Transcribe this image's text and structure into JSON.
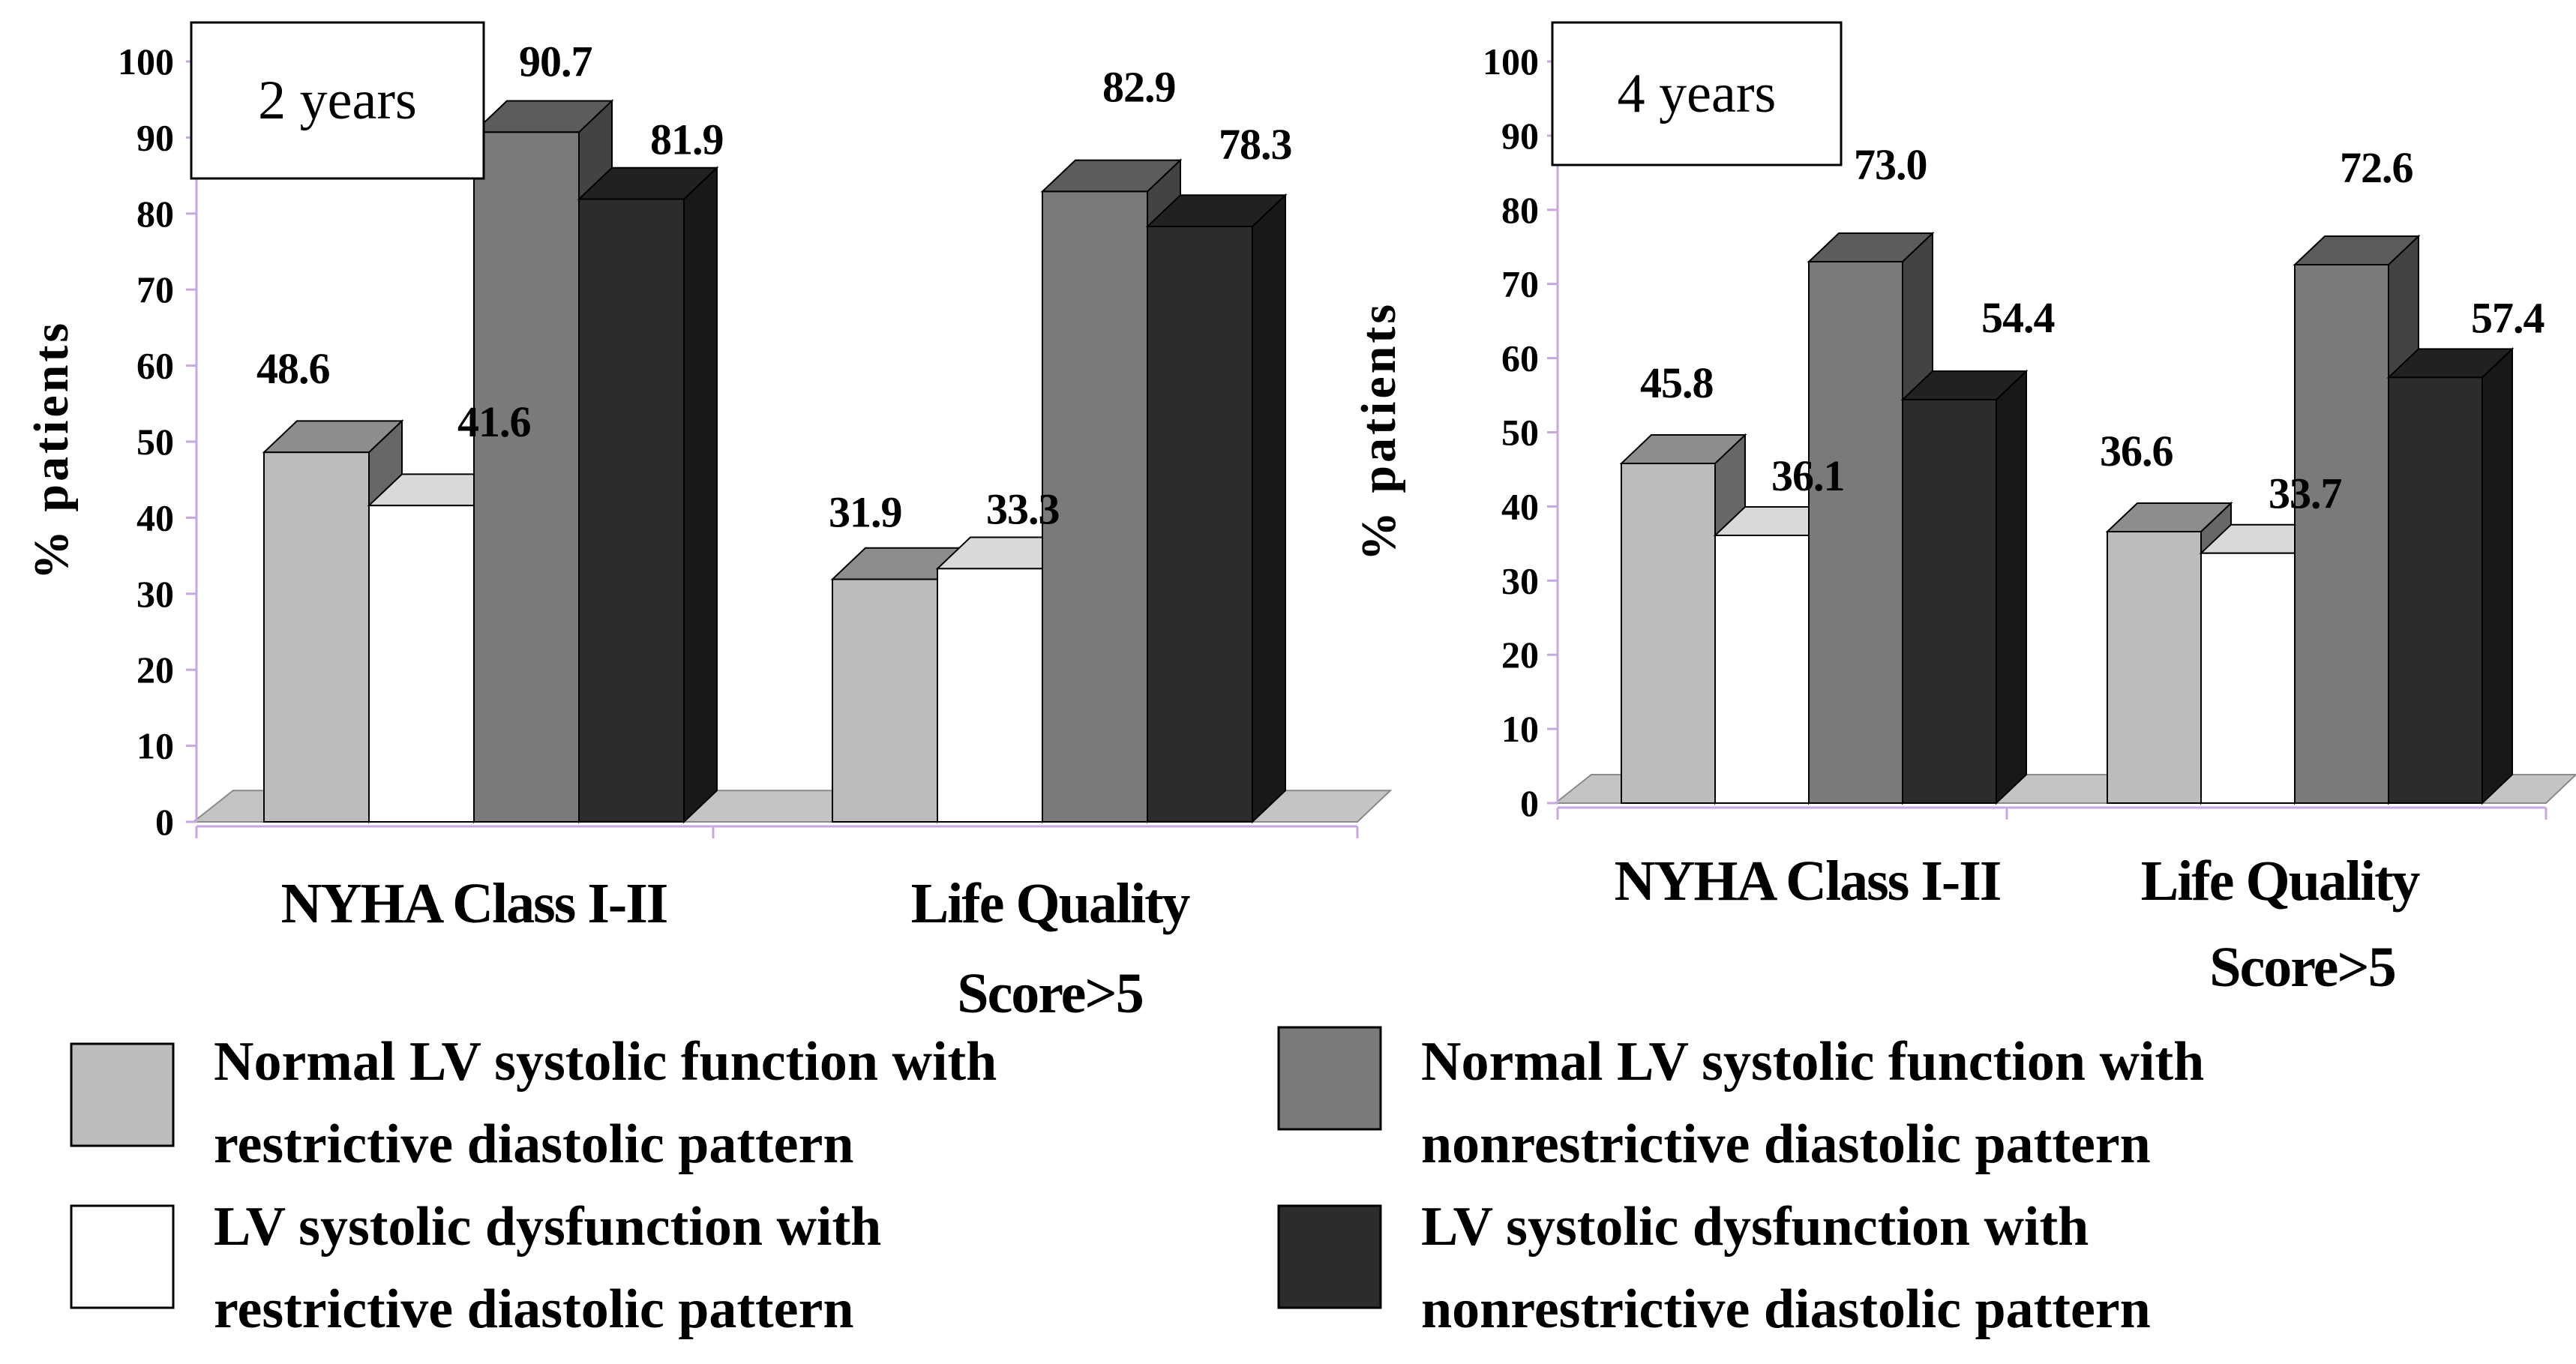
{
  "colors": {
    "normal_restrictive": "#bcbcbc",
    "dysfunction_restrictive": "#ffffff",
    "normal_nonrestrictive": "#7a7a7a",
    "dysfunction_nonrestrictive": "#2c2c2c",
    "axis": "#c9a7e0",
    "floor": "#c4c4c4"
  },
  "legend": [
    {
      "series": "normal_restrictive",
      "lines": [
        "Normal LV systolic function with",
        "restrictive diastolic pattern"
      ]
    },
    {
      "series": "dysfunction_restrictive",
      "lines": [
        "LV systolic dysfunction with",
        "restrictive diastolic pattern"
      ]
    },
    {
      "series": "normal_nonrestrictive",
      "lines": [
        "Normal LV systolic function with",
        "nonrestrictive diastolic pattern"
      ]
    },
    {
      "series": "dysfunction_nonrestrictive",
      "lines": [
        "LV systolic dysfunction with",
        "nonrestrictive diastolic pattern"
      ]
    }
  ],
  "chart_data": [
    {
      "type": "bar",
      "title": "2 years",
      "ylabel": "% patients",
      "ylim": [
        0,
        100
      ],
      "yticks": [
        "0",
        "10",
        "20",
        "30",
        "40",
        "50",
        "60",
        "70",
        "80",
        "90",
        "100"
      ],
      "categories": [
        [
          "NYHA Class I-II"
        ],
        [
          "Life Quality",
          "Score>5"
        ]
      ],
      "series": [
        {
          "key": "normal_restrictive",
          "values": [
            48.6,
            31.9
          ],
          "labels": [
            "48.6",
            "31.9"
          ]
        },
        {
          "key": "dysfunction_restrictive",
          "values": [
            41.6,
            33.3
          ],
          "labels": [
            "41.6",
            "33.3"
          ]
        },
        {
          "key": "normal_nonrestrictive",
          "values": [
            90.7,
            82.9
          ],
          "labels": [
            "90.7",
            "82.9"
          ]
        },
        {
          "key": "dysfunction_nonrestrictive",
          "values": [
            81.9,
            78.3
          ],
          "labels": [
            "81.9",
            "78.3"
          ]
        }
      ]
    },
    {
      "type": "bar",
      "title": "4 years",
      "ylabel": "% patients",
      "ylim": [
        0,
        100
      ],
      "yticks": [
        "0",
        "10",
        "20",
        "30",
        "40",
        "50",
        "60",
        "70",
        "80",
        "90",
        "100"
      ],
      "categories": [
        [
          "NYHA Class I-II"
        ],
        [
          "Life Quality",
          "Score>5"
        ]
      ],
      "series": [
        {
          "key": "normal_restrictive",
          "values": [
            45.8,
            36.6
          ],
          "labels": [
            "45.8",
            "36.6"
          ]
        },
        {
          "key": "dysfunction_restrictive",
          "values": [
            36.1,
            33.7
          ],
          "labels": [
            "36.1",
            "33.7"
          ]
        },
        {
          "key": "normal_nonrestrictive",
          "values": [
            73.0,
            72.6
          ],
          "labels": [
            "73.0",
            "72.6"
          ]
        },
        {
          "key": "dysfunction_nonrestrictive",
          "values": [
            54.4,
            57.4
          ],
          "labels": [
            "54.4",
            "57.4"
          ]
        }
      ]
    }
  ]
}
